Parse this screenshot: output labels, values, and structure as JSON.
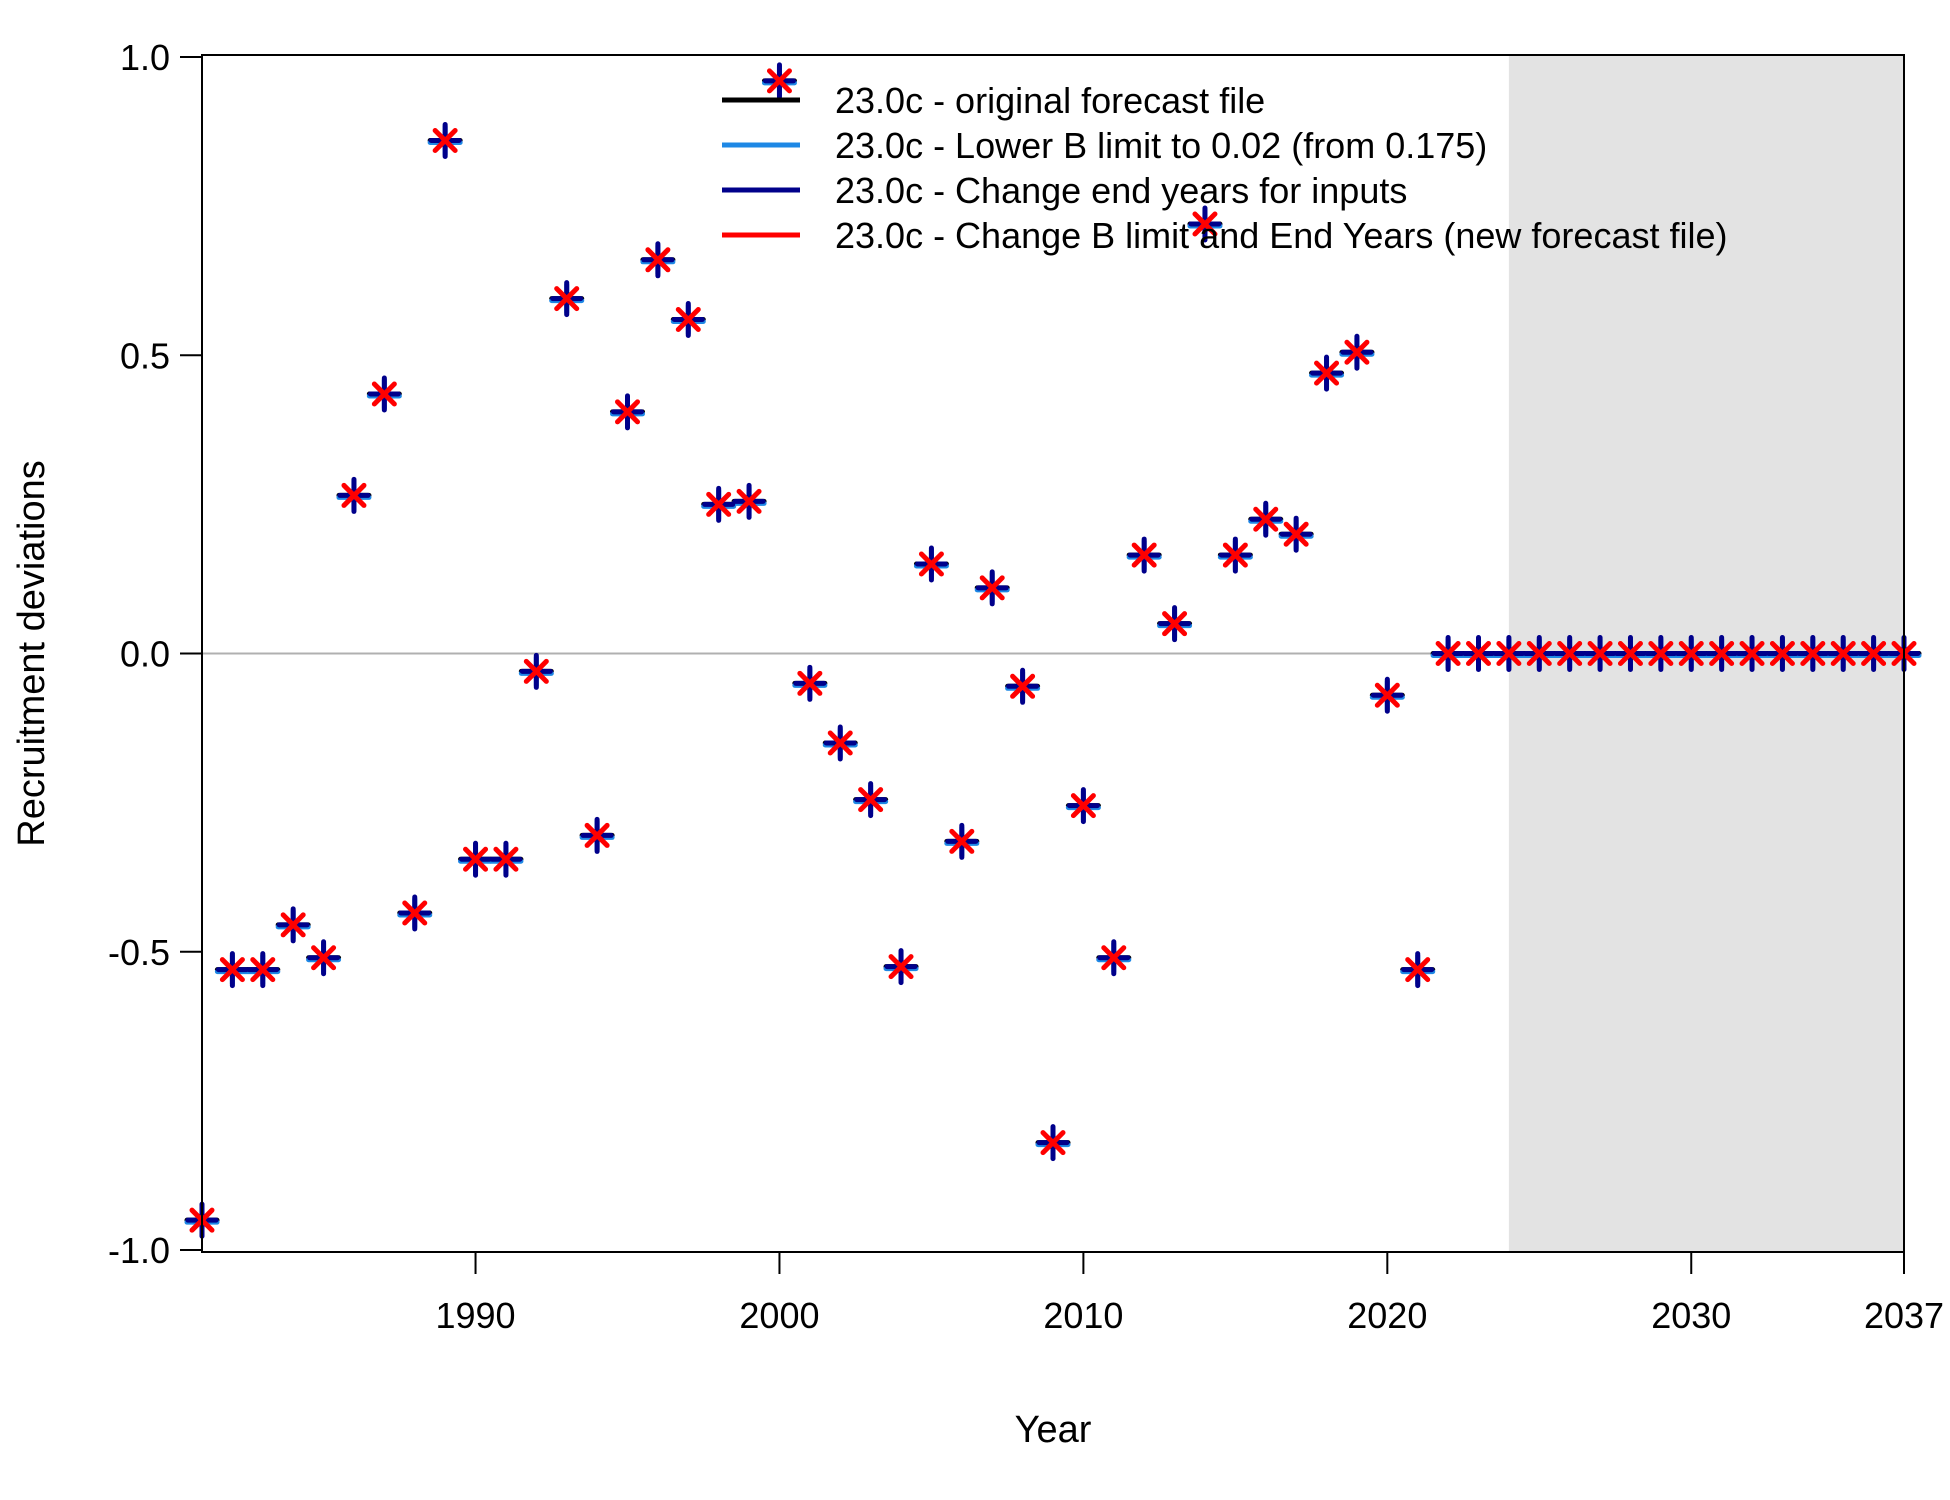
{
  "chart_data": {
    "type": "scatter",
    "title": "",
    "xlabel": "Year",
    "ylabel": "Recruitment deviations",
    "xlim": [
      1981,
      2037
    ],
    "ylim": [
      -1.0,
      1.0
    ],
    "x_ticks": [
      1990,
      2000,
      2010,
      2020,
      2030,
      2037
    ],
    "y_ticks": [
      -1.0,
      -0.5,
      0.0,
      0.5,
      1.0
    ],
    "x_tick_labels": [
      "1990",
      "2000",
      "2010",
      "2020",
      "2030",
      "2037"
    ],
    "y_tick_labels": [
      "-1.0",
      "-0.5",
      "0.0",
      "0.5",
      "1.0"
    ],
    "forecast_shade_start": 2024,
    "zero_line": true,
    "grid": false,
    "legend_position": "top",
    "x": [
      1981,
      1982,
      1983,
      1984,
      1985,
      1986,
      1987,
      1988,
      1989,
      1990,
      1991,
      1992,
      1993,
      1994,
      1995,
      1996,
      1997,
      1998,
      1999,
      2000,
      2001,
      2002,
      2003,
      2004,
      2005,
      2006,
      2007,
      2008,
      2009,
      2010,
      2011,
      2012,
      2013,
      2014,
      2015,
      2016,
      2017,
      2018,
      2019,
      2020,
      2021,
      2022,
      2023,
      2024,
      2025,
      2026,
      2027,
      2028,
      2029,
      2030,
      2031,
      2032,
      2033,
      2034,
      2035,
      2036,
      2037
    ],
    "series": [
      {
        "name": "23.0c - original forecast file",
        "color": "#000000",
        "values": [
          -0.95,
          -0.53,
          -0.53,
          -0.455,
          -0.51,
          0.265,
          0.435,
          -0.435,
          0.86,
          -0.345,
          -0.345,
          -0.03,
          0.595,
          -0.305,
          0.405,
          0.66,
          0.56,
          0.25,
          0.255,
          0.96,
          -0.05,
          -0.15,
          -0.245,
          -0.525,
          0.15,
          -0.315,
          0.11,
          -0.055,
          -0.82,
          -0.255,
          -0.51,
          0.165,
          0.05,
          0.72,
          0.165,
          0.225,
          0.2,
          0.47,
          0.505,
          -0.07,
          -0.53,
          0,
          0,
          0,
          0,
          0,
          0,
          0,
          0,
          0,
          0,
          0,
          0,
          0,
          0,
          0,
          0
        ]
      },
      {
        "name": "23.0c - Lower B limit to 0.02 (from 0.175)",
        "color": "#1E88E5",
        "values": [
          -0.95,
          -0.53,
          -0.53,
          -0.455,
          -0.51,
          0.265,
          0.435,
          -0.435,
          0.86,
          -0.345,
          -0.345,
          -0.03,
          0.595,
          -0.305,
          0.405,
          0.66,
          0.56,
          0.25,
          0.255,
          0.96,
          -0.05,
          -0.15,
          -0.245,
          -0.525,
          0.15,
          -0.315,
          0.11,
          -0.055,
          -0.82,
          -0.255,
          -0.51,
          0.165,
          0.05,
          0.72,
          0.165,
          0.225,
          0.2,
          0.47,
          0.505,
          -0.07,
          -0.53,
          0,
          0,
          0,
          0,
          0,
          0,
          0,
          0,
          0,
          0,
          0,
          0,
          0,
          0,
          0,
          0
        ]
      },
      {
        "name": "23.0c - Change end years for inputs",
        "color": "#00008B",
        "values": [
          -0.95,
          -0.53,
          -0.53,
          -0.455,
          -0.51,
          0.265,
          0.435,
          -0.435,
          0.86,
          -0.345,
          -0.345,
          -0.03,
          0.595,
          -0.305,
          0.405,
          0.66,
          0.56,
          0.25,
          0.255,
          0.96,
          -0.05,
          -0.15,
          -0.245,
          -0.525,
          0.15,
          -0.315,
          0.11,
          -0.055,
          -0.82,
          -0.255,
          -0.51,
          0.165,
          0.05,
          0.72,
          0.165,
          0.225,
          0.2,
          0.47,
          0.505,
          -0.07,
          -0.53,
          0,
          0,
          0,
          0,
          0,
          0,
          0,
          0,
          0,
          0,
          0,
          0,
          0,
          0,
          0,
          0
        ]
      },
      {
        "name": "23.0c - Change B limit and End Years (new forecast file)",
        "color": "#FF0000",
        "values": [
          -0.95,
          -0.53,
          -0.53,
          -0.455,
          -0.51,
          0.265,
          0.435,
          -0.435,
          0.86,
          -0.345,
          -0.345,
          -0.03,
          0.595,
          -0.305,
          0.405,
          0.66,
          0.56,
          0.25,
          0.255,
          0.96,
          -0.05,
          -0.15,
          -0.245,
          -0.525,
          0.15,
          -0.315,
          0.11,
          -0.055,
          -0.82,
          -0.255,
          -0.51,
          0.165,
          0.05,
          0.72,
          0.165,
          0.225,
          0.2,
          0.47,
          0.505,
          -0.07,
          -0.53,
          0,
          0,
          0,
          0,
          0,
          0,
          0,
          0,
          0,
          0,
          0,
          0,
          0,
          0,
          0,
          0
        ]
      }
    ]
  }
}
